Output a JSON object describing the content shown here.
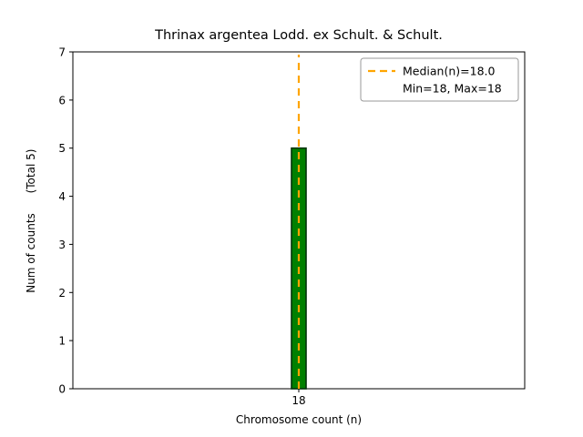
{
  "chart_data": {
    "type": "bar",
    "title": "Thrinax argentea Lodd. ex Schult. & Schult.",
    "xlabel": "Chromosome count (n)",
    "ylabel": "Num of counts",
    "ylabel_secondary": "(Total 5)",
    "categories": [
      "18"
    ],
    "values": [
      5
    ],
    "series": [
      {
        "name": "counts",
        "values": [
          5
        ]
      }
    ],
    "ylim": [
      0,
      7
    ],
    "yticks": [
      "0",
      "1",
      "2",
      "3",
      "4",
      "5",
      "6",
      "7"
    ],
    "xticks": [
      "18"
    ],
    "grid": "off",
    "bar_color": "#008000",
    "bar_edge_color": "#02330a",
    "median_line": {
      "x": 18,
      "value": 18.0,
      "color": "#FFA500",
      "style": "dashed"
    },
    "legend": {
      "position": "upper right",
      "entries": [
        {
          "label": "Median(n)=18.0",
          "marker": "dashed-orange-line"
        },
        {
          "label": "Min=18, Max=18",
          "marker": "none"
        }
      ]
    }
  }
}
